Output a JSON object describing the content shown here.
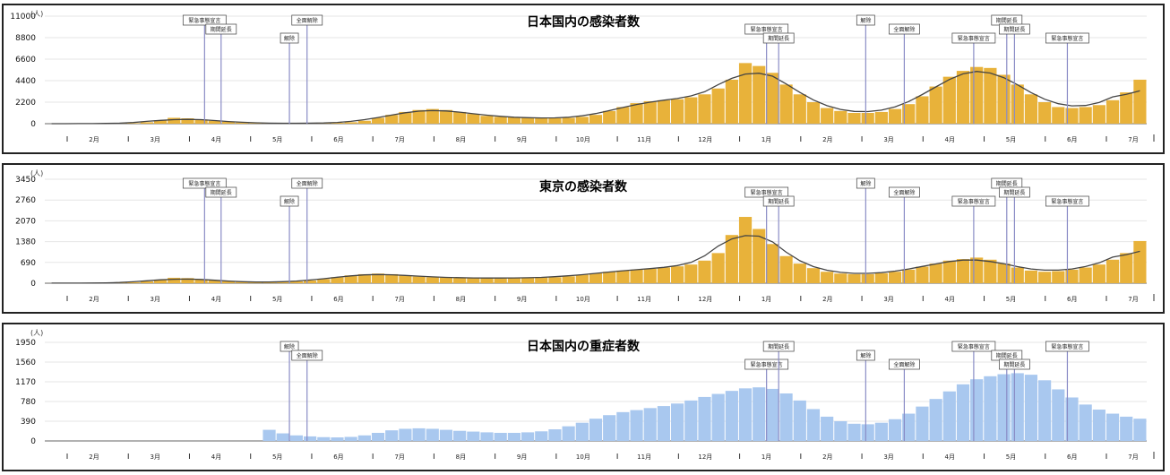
{
  "colors": {
    "bar_orange": "#e8b23a",
    "bar_blue": "#a9c8ef",
    "line_dark": "#444444",
    "title_orange": "#c84a12",
    "title_blue": "#2f7fd4",
    "marker_line": "#8a8cc6"
  },
  "months": [
    "2月",
    "3月",
    "4月",
    "5月",
    "6月",
    "7月",
    "8月",
    "9月",
    "10月",
    "11月",
    "12月",
    "1月",
    "2月",
    "3月",
    "4月",
    "5月",
    "6月",
    "7月"
  ],
  "chart_data": [
    {
      "type": "bar",
      "title": "日本国内の感染者数",
      "unit": "(人)",
      "yticks": [
        0,
        2200,
        4400,
        6600,
        8800,
        11000
      ],
      "ylim": [
        0,
        11000
      ],
      "weekly_values": [
        2,
        3,
        5,
        8,
        15,
        30,
        60,
        150,
        350,
        600,
        550,
        420,
        300,
        200,
        120,
        70,
        40,
        30,
        35,
        45,
        60,
        90,
        150,
        300,
        600,
        900,
        1200,
        1400,
        1500,
        1400,
        1200,
        1000,
        800,
        700,
        650,
        600,
        550,
        550,
        600,
        700,
        900,
        1300,
        1700,
        2100,
        2300,
        2400,
        2500,
        2700,
        3000,
        3600,
        4500,
        6200,
        5900,
        5200,
        4000,
        3000,
        2200,
        1600,
        1300,
        1100,
        1100,
        1200,
        1500,
        2000,
        2800,
        3800,
        4800,
        5400,
        5800,
        5700,
        5000,
        4000,
        3000,
        2200,
        1700,
        1600,
        1700,
        1900,
        2400,
        3200,
        4500
      ],
      "markers": [
        "緊急事態宣言",
        "期間延長",
        "解除",
        "全面解除",
        "緊急事態宣言",
        "期間延長",
        "解除",
        "全面解除",
        "緊急事態宣言",
        "期間延長",
        "期間延長",
        "緊急事態宣言"
      ],
      "marker_fractions": [
        0.145,
        0.16,
        0.222,
        0.238,
        0.655,
        0.666,
        0.745,
        0.78,
        0.843,
        0.873,
        0.88,
        0.928
      ]
    },
    {
      "type": "bar",
      "title": "東京の感染者数",
      "unit": "(人)",
      "yticks": [
        0,
        690,
        1380,
        2070,
        2760,
        3450
      ],
      "ylim": [
        0,
        3450
      ],
      "weekly_values": [
        1,
        2,
        3,
        5,
        8,
        15,
        30,
        60,
        120,
        180,
        170,
        130,
        90,
        60,
        40,
        30,
        30,
        40,
        60,
        90,
        140,
        200,
        260,
        300,
        320,
        300,
        260,
        220,
        200,
        190,
        180,
        180,
        170,
        160,
        170,
        180,
        190,
        200,
        230,
        280,
        330,
        380,
        420,
        450,
        480,
        520,
        560,
        620,
        750,
        1000,
        1600,
        2200,
        1800,
        1300,
        900,
        650,
        500,
        380,
        320,
        300,
        300,
        330,
        380,
        450,
        550,
        650,
        750,
        800,
        850,
        780,
        650,
        520,
        420,
        380,
        400,
        450,
        520,
        620,
        780,
        1000,
        1400
      ],
      "markers": [
        "緊急事態宣言",
        "期間延長",
        "解除",
        "全面解除",
        "緊急事態宣言",
        "期間延長",
        "解除",
        "全面解除",
        "緊急事態宣言",
        "期間延長",
        "期間延長",
        "緊急事態宣言"
      ],
      "marker_fractions": [
        0.145,
        0.16,
        0.222,
        0.238,
        0.655,
        0.666,
        0.745,
        0.78,
        0.843,
        0.873,
        0.88,
        0.928
      ]
    },
    {
      "type": "bar",
      "title": "日本国内の重症者数",
      "unit": "(人)",
      "yticks": [
        0,
        390,
        780,
        1170,
        1560,
        1950
      ],
      "ylim": [
        0,
        1950
      ],
      "weekly_values": [
        null,
        null,
        null,
        null,
        null,
        null,
        null,
        null,
        null,
        null,
        null,
        null,
        null,
        null,
        null,
        null,
        220,
        150,
        110,
        90,
        75,
        70,
        80,
        110,
        160,
        210,
        240,
        250,
        240,
        220,
        200,
        185,
        170,
        160,
        160,
        170,
        190,
        230,
        290,
        360,
        440,
        510,
        570,
        610,
        650,
        690,
        740,
        800,
        870,
        930,
        990,
        1040,
        1060,
        1030,
        940,
        800,
        630,
        480,
        390,
        340,
        330,
        360,
        430,
        540,
        680,
        830,
        980,
        1120,
        1220,
        1280,
        1320,
        1340,
        1310,
        1200,
        1020,
        860,
        720,
        620,
        540,
        480,
        440
      ],
      "markers": [
        "解除",
        "全面解除",
        "緊急事態宣言",
        "期間延長",
        "解除",
        "全面解除",
        "緊急事態宣言",
        "期間延長",
        "期間延長",
        "緊急事態宣言"
      ],
      "marker_fractions": [
        0.222,
        0.238,
        0.655,
        0.666,
        0.745,
        0.78,
        0.843,
        0.873,
        0.88,
        0.928
      ]
    }
  ]
}
